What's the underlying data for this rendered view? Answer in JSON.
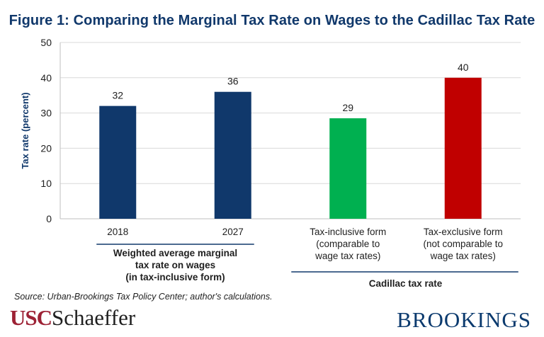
{
  "chart_data": {
    "type": "bar",
    "title": "Figure 1: Comparing the Marginal Tax Rate on Wages to the Cadillac Tax Rate",
    "ylabel": "Tax rate (percent)",
    "ylim": [
      0,
      50
    ],
    "yticks": [
      "0",
      "10",
      "20",
      "30",
      "40",
      "50"
    ],
    "categories": [
      "2018",
      "2027",
      "Tax-inclusive form\n(comparable to\nwage tax rates)",
      "Tax-exclusive form\n(not comparable to\nwage tax rates)"
    ],
    "values": [
      32,
      36,
      28.5,
      40
    ],
    "data_labels": [
      "32",
      "36",
      "29",
      "40"
    ],
    "colors": [
      "#10386b",
      "#10386b",
      "#00b050",
      "#c00000"
    ],
    "groups": [
      {
        "label": "Weighted average marginal\ntax rate on wages\n(in tax-inclusive form)"
      },
      {
        "label": "Cadillac tax rate"
      }
    ],
    "grid": true
  },
  "source": "Source: Urban-Brookings Tax Policy Center; author's calculations.",
  "logos": {
    "left_a": "USC",
    "left_b": "Schaeffer",
    "right": "BROOKINGS"
  }
}
